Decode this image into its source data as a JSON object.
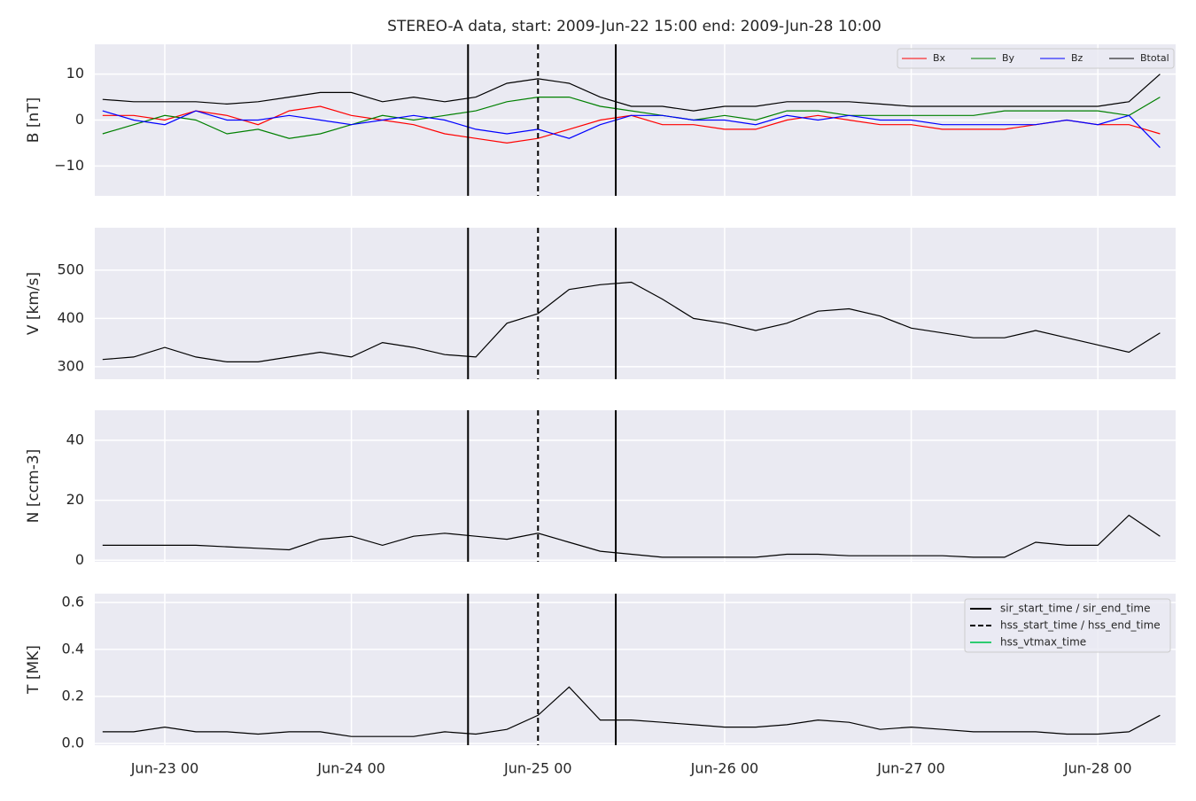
{
  "title": "STEREO-A data, start: 2009-Jun-22 15:00  end: 2009-Jun-28 10:00",
  "x": [
    "Jun-22 16",
    "Jun-22 20",
    "Jun-23 00",
    "Jun-23 04",
    "Jun-23 08",
    "Jun-23 12",
    "Jun-23 16",
    "Jun-23 20",
    "Jun-24 00",
    "Jun-24 04",
    "Jun-24 08",
    "Jun-24 12",
    "Jun-24 16",
    "Jun-24 20",
    "Jun-25 00",
    "Jun-25 04",
    "Jun-25 08",
    "Jun-25 12",
    "Jun-25 16",
    "Jun-25 20",
    "Jun-26 00",
    "Jun-26 04",
    "Jun-26 08",
    "Jun-26 12",
    "Jun-26 16",
    "Jun-26 20",
    "Jun-27 00",
    "Jun-27 04",
    "Jun-27 08",
    "Jun-27 12",
    "Jun-27 16",
    "Jun-27 20",
    "Jun-28 00",
    "Jun-28 04",
    "Jun-28 08"
  ],
  "xlim": [
    "Jun-22 15",
    "Jun-28 10"
  ],
  "xticks": [
    "Jun-23 00",
    "Jun-24 00",
    "Jun-25 00",
    "Jun-26 00",
    "Jun-27 00",
    "Jun-28 00"
  ],
  "grid": true,
  "chart_data": [
    {
      "type": "line",
      "ylabel": "B [nT]",
      "ylim": [
        -16.5,
        16.5
      ],
      "yticks": [
        {
          "value": -10,
          "label": "−10"
        },
        0,
        10
      ],
      "legend": "upper right",
      "series": [
        {
          "name": "Bx",
          "color": "#ff0000",
          "values": [
            1,
            1,
            0,
            2,
            1,
            -1,
            2,
            3,
            1,
            0,
            -1,
            -3,
            -4,
            -5,
            -4,
            -2,
            0,
            1,
            -1,
            -1,
            -2,
            -2,
            0,
            1,
            0,
            -1,
            -1,
            -2,
            -2,
            -2,
            -1,
            0,
            -1,
            -1,
            -3
          ]
        },
        {
          "name": "By",
          "color": "#008000",
          "values": [
            -3,
            -1,
            1,
            0,
            -3,
            -2,
            -4,
            -3,
            -1,
            1,
            0,
            1,
            2,
            4,
            5,
            5,
            3,
            2,
            1,
            0,
            1,
            0,
            2,
            2,
            1,
            1,
            1,
            1,
            1,
            2,
            2,
            2,
            2,
            1,
            5
          ]
        },
        {
          "name": "Bz",
          "color": "#0000ff",
          "values": [
            2,
            0,
            -1,
            2,
            0,
            0,
            1,
            0,
            -1,
            0,
            1,
            0,
            -2,
            -3,
            -2,
            -4,
            -1,
            1,
            1,
            0,
            0,
            -1,
            1,
            0,
            1,
            0,
            0,
            -1,
            -1,
            -1,
            -1,
            0,
            -1,
            1,
            -6
          ]
        },
        {
          "name": "Btotal",
          "color": "#000000",
          "values": [
            4.5,
            4,
            4,
            4,
            3.5,
            4,
            5,
            6,
            6,
            4,
            5,
            4,
            5,
            8,
            9,
            8,
            5,
            3,
            3,
            2,
            3,
            3,
            4,
            4,
            4,
            3.5,
            3,
            3,
            3,
            3,
            3,
            3,
            3,
            4,
            10
          ]
        }
      ]
    },
    {
      "type": "line",
      "ylabel": "V [km/s]",
      "ylim": [
        274,
        588
      ],
      "yticks": [
        300,
        400,
        500
      ],
      "series": [
        {
          "color": "#000000",
          "values": [
            315,
            320,
            340,
            320,
            310,
            310,
            320,
            330,
            320,
            350,
            340,
            325,
            320,
            390,
            410,
            460,
            470,
            475,
            440,
            400,
            390,
            375,
            390,
            415,
            420,
            405,
            380,
            370,
            360,
            360,
            375,
            360,
            345,
            330,
            370
          ]
        }
      ]
    },
    {
      "type": "line",
      "ylabel": "N [ccm-3]",
      "ylim": [
        -0.5,
        50
      ],
      "yticks": [
        0,
        20,
        40
      ],
      "series": [
        {
          "color": "#000000",
          "values": [
            5,
            5,
            5,
            5,
            4.5,
            4,
            3.5,
            7,
            8,
            5,
            8,
            9,
            8,
            7,
            9,
            6,
            3,
            2,
            1,
            1,
            1,
            1,
            2,
            2,
            1.5,
            1.5,
            1.5,
            1.5,
            1,
            1,
            6,
            5,
            5,
            15,
            8
          ]
        }
      ]
    },
    {
      "type": "line",
      "ylabel": "T [MK]",
      "ylim": [
        -0.007,
        0.637
      ],
      "yticks": [
        {
          "value": 0,
          "label": "0.0"
        },
        0.2,
        0.4,
        0.6
      ],
      "legend": "upper right",
      "series": [
        {
          "color": "#000000",
          "values": [
            0.05,
            0.05,
            0.07,
            0.05,
            0.05,
            0.04,
            0.05,
            0.05,
            0.03,
            0.03,
            0.03,
            0.05,
            0.04,
            0.06,
            0.12,
            0.24,
            0.1,
            0.1,
            0.09,
            0.08,
            0.07,
            0.07,
            0.08,
            0.1,
            0.09,
            0.06,
            0.07,
            0.06,
            0.05,
            0.05,
            0.05,
            0.04,
            0.04,
            0.05,
            0.12
          ]
        }
      ],
      "events": [
        {
          "name": "sir_start_time / sir_end_time",
          "color": "#000000",
          "style": "solid",
          "times": [
            "Jun-24 15",
            "Jun-25 10"
          ]
        },
        {
          "name": "hss_start_time / hss_end_time",
          "color": "#000000",
          "style": "dashed",
          "times": [
            "Jun-25 00"
          ]
        },
        {
          "name": "hss_vtmax_time",
          "color": "#2ecc71",
          "style": "solid",
          "times": []
        }
      ]
    }
  ]
}
